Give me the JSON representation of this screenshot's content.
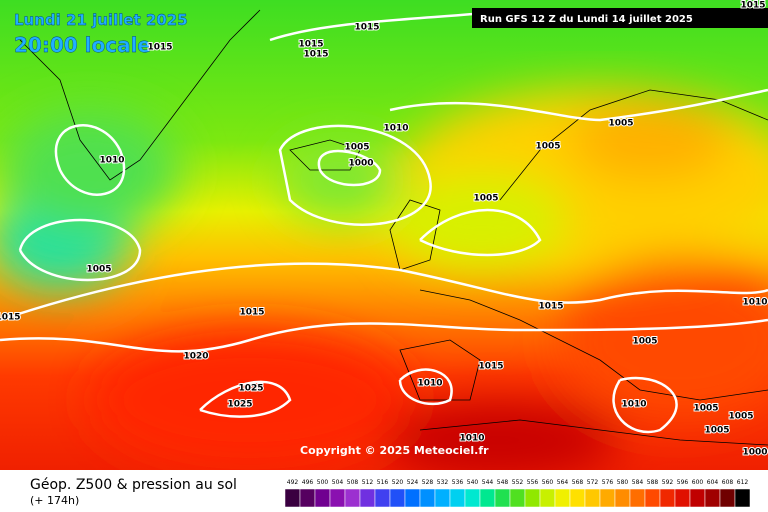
{
  "header": {
    "date": "Lundi 21 juillet 2025",
    "time": "20:00 locale",
    "run": "Run GFS 12 Z du Lundi 14 juillet 2025"
  },
  "isobar_labels": [
    1015,
    1015,
    1015,
    1015,
    1015,
    1010,
    1005,
    1000,
    1010,
    1005,
    1005,
    1005,
    1005,
    1015,
    1015,
    1020,
    1015,
    1010,
    1005,
    1015,
    1010,
    1025,
    1025,
    1010,
    1005,
    1005,
    1005,
    1010,
    1000
  ],
  "copyright": "Copyright © 2025 Meteociel.fr",
  "footer": {
    "title": "Géop. Z500 & pression au sol",
    "subtitle": "(+ 174h)"
  },
  "scale": {
    "values": [
      492,
      496,
      500,
      504,
      508,
      512,
      516,
      520,
      524,
      528,
      532,
      536,
      540,
      544,
      548,
      552,
      556,
      560,
      564,
      568,
      572,
      576,
      580,
      584,
      588,
      592,
      596,
      600,
      604,
      608,
      612
    ],
    "colors": [
      "#3a0040",
      "#560060",
      "#700090",
      "#8a10b0",
      "#9c30d0",
      "#7030e0",
      "#4040f0",
      "#2050f8",
      "#0070ff",
      "#0090ff",
      "#00b0ff",
      "#00d0f0",
      "#00e8d0",
      "#00e890",
      "#20e050",
      "#50e020",
      "#90e800",
      "#c8f000",
      "#f0f000",
      "#ffe000",
      "#ffc800",
      "#ffaa00",
      "#ff8c00",
      "#ff6e00",
      "#ff4a00",
      "#f02800",
      "#e01000",
      "#c00000",
      "#a00000",
      "#700000",
      "#000000"
    ]
  }
}
